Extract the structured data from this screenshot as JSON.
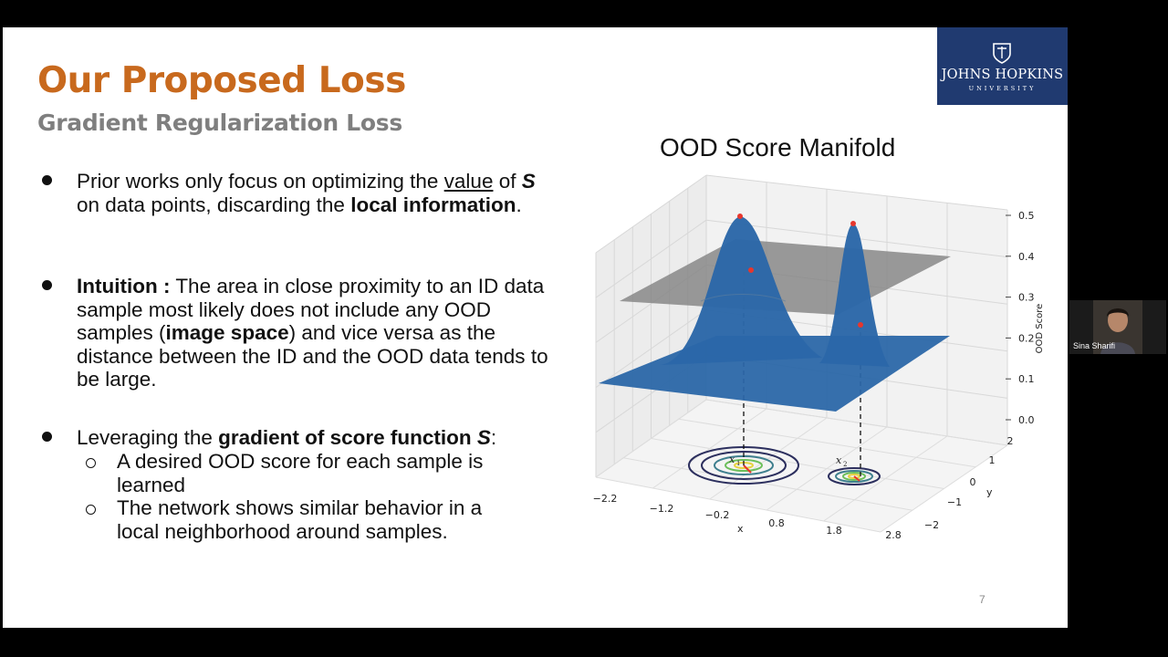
{
  "slide": {
    "title": "Our Proposed Loss",
    "subtitle": "Gradient Regularization Loss",
    "page_number": "7",
    "logo": {
      "name": "JOHNS HOPKINS",
      "sub": "UNIVERSITY"
    }
  },
  "bullets": [
    {
      "parts": [
        "Prior works only focus on optimizing the ",
        "value",
        " of ",
        "S",
        " on data points, discarding the ",
        "local information",
        "."
      ]
    },
    {
      "parts": [
        "Intuition :",
        " The area in close proximity to an ID data sample most likely does not include any OOD samples (",
        "image space",
        ") and vice versa as the distance between the ID and the OOD data tends to be large."
      ]
    },
    {
      "parts": [
        "Leveraging the ",
        "gradient of score function ",
        "S",
        ":"
      ]
    }
  ],
  "sub_bullets": [
    "A desired OOD score for each sample is learned",
    "The network shows similar behavior in a local neighborhood around samples."
  ],
  "chart_data": {
    "type": "surface",
    "title": "OOD Score Manifold",
    "xlabel": "x",
    "ylabel": "y",
    "zlabel": "OOD Score",
    "x_ticks": [
      "−2.2",
      "−1.2",
      "−0.2",
      "0.8",
      "1.8",
      "2.8"
    ],
    "y_ticks": [
      "−2",
      "−1",
      "0",
      "1",
      "2"
    ],
    "z_ticks": [
      "0.0",
      "0.1",
      "0.2",
      "0.3",
      "0.4",
      "0.5"
    ],
    "zlim": [
      0,
      0.5
    ],
    "point_labels": [
      "x1",
      "x2"
    ],
    "peaks": [
      {
        "label": "x1",
        "peak_score": 0.5
      },
      {
        "label": "x2",
        "peak_score": 0.48
      }
    ],
    "colors": {
      "surface": "#2b67a8",
      "plane": "#7f7f7f",
      "peak_marker": "#e8362c"
    }
  },
  "webcam": {
    "name": "Sina Sharifi"
  }
}
